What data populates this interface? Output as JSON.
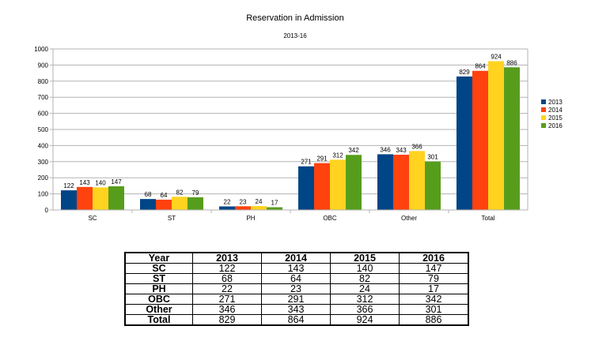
{
  "chart_data": {
    "type": "bar",
    "title": "Reservation in Admission",
    "subtitle": "2013-16",
    "categories": [
      "SC",
      "ST",
      "PH",
      "OBC",
      "Other",
      "Total"
    ],
    "series": [
      {
        "name": "2013",
        "color": "#004586",
        "values": [
          122,
          68,
          22,
          271,
          346,
          829
        ]
      },
      {
        "name": "2014",
        "color": "#ff420e",
        "values": [
          143,
          64,
          23,
          291,
          343,
          864
        ]
      },
      {
        "name": "2015",
        "color": "#ffd320",
        "values": [
          140,
          82,
          24,
          312,
          366,
          924
        ]
      },
      {
        "name": "2016",
        "color": "#579d1c",
        "values": [
          147,
          79,
          17,
          342,
          301,
          886
        ]
      }
    ],
    "ylim": [
      0,
      1000
    ],
    "yticks": [
      0,
      100,
      200,
      300,
      400,
      500,
      600,
      700,
      800,
      900,
      1000
    ],
    "grid": true,
    "legend": "right",
    "xlabel": "",
    "ylabel": ""
  },
  "table": {
    "headers": [
      "Year",
      "2013",
      "2014",
      "2015",
      "2016"
    ],
    "rows": [
      [
        "SC",
        "122",
        "143",
        "140",
        "147"
      ],
      [
        "ST",
        "68",
        "64",
        "82",
        "79"
      ],
      [
        "PH",
        "22",
        "23",
        "24",
        "17"
      ],
      [
        "OBC",
        "271",
        "291",
        "312",
        "342"
      ],
      [
        "Other",
        "346",
        "343",
        "366",
        "301"
      ],
      [
        "Total",
        "829",
        "864",
        "924",
        "886"
      ]
    ]
  }
}
